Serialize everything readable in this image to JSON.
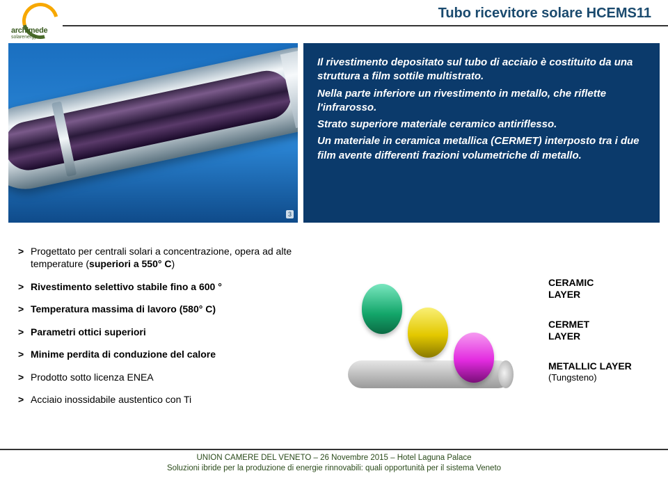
{
  "logo": {
    "name": "archimede",
    "sub": "solarenergy"
  },
  "title": "Tubo ricevitore solare HCEMS11",
  "photo_counter": "3",
  "description": {
    "p1": "Il rivestimento depositato sul tubo di acciaio è costituito da una struttura a film sottile multistrato.",
    "p2": "Nella parte inferiore un rivestimento in metallo, che riflette l'infrarosso.",
    "p3": "Strato superiore materiale ceramico antiriflesso.",
    "p4": "Un materiale in ceramica metallica (CERMET) interposto tra i due film avente differenti frazioni volumetriche di metallo."
  },
  "bullets": {
    "b1a": "Progettato per centrali solari a concentrazione, opera ad alte temperature (",
    "b1b": "superiori a 550° C",
    "b1c": ")",
    "b2": "Rivestimento selettivo stabile fino a 600 °",
    "b3": "Temperatura massima di lavoro (580° C)",
    "b4": "Parametri ottici superiori",
    "b5": "Minime perdita di conduzione del calore",
    "b6": "Prodotto sotto licenza ENEA",
    "b7": "Acciaio inossidabile austentico con Ti"
  },
  "layers": {
    "ceramic_l1": "CERAMIC",
    "ceramic_l2": "LAYER",
    "cermet_l1": "CERMET",
    "cermet_l2": "LAYER",
    "metal_l1": "METALLIC  LAYER",
    "metal_l2": "(Tungsteno)"
  },
  "footer": {
    "l1": "UNION CAMERE DEL VENETO – 26 Novembre 2015 – Hotel Laguna Palace",
    "l2": "Soluzioni ibride per la produzione di energie rinnovabili: quali opportunità per il sistema Veneto"
  },
  "colors": {
    "title": "#1a4a6e",
    "panel_bg": "#0b3a6b",
    "ceramic": "#13a66a",
    "cermet": "#e3c800",
    "metallic": "#e32be0",
    "cylinder": "#bfbfbf",
    "footer_text": "#2a4a1a"
  }
}
